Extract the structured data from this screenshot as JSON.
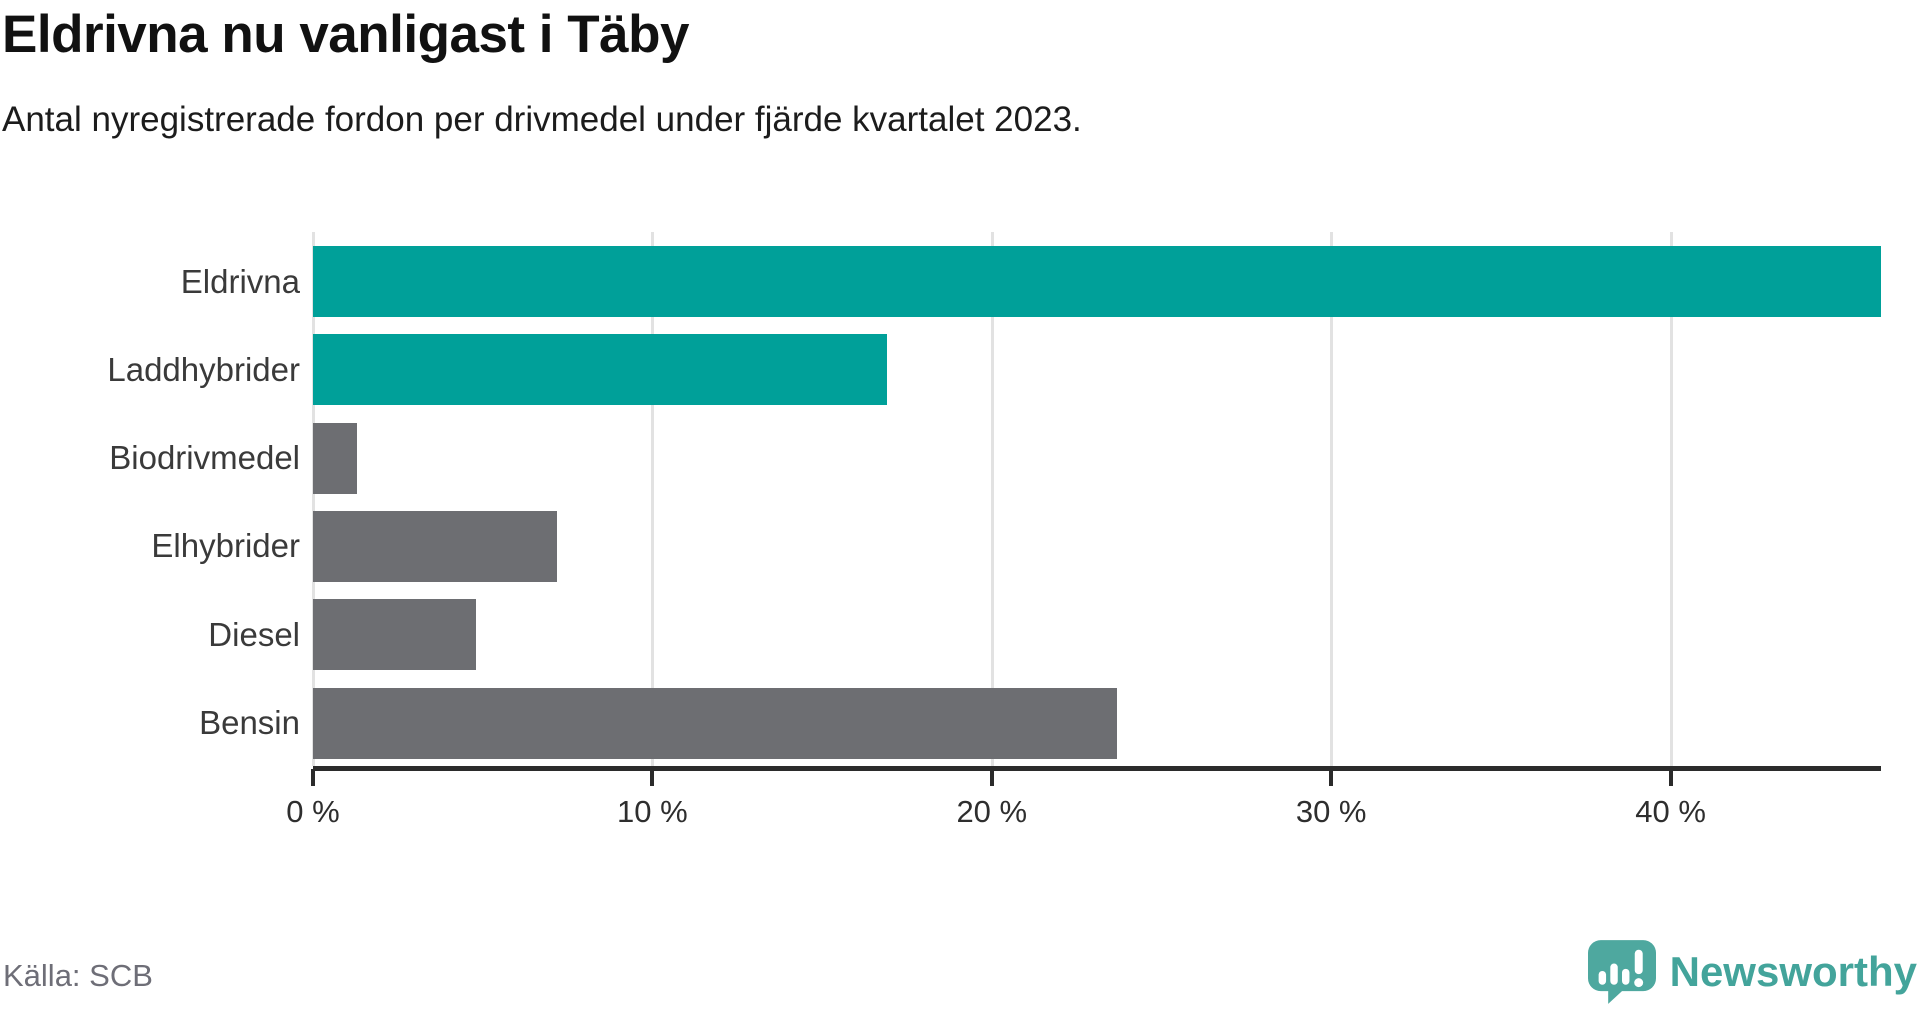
{
  "header": {
    "title": "Eldrivna nu vanligast i Täby",
    "subtitle": "Antal nyregistrerade fordon per drivmedel under fjärde kvartalet 2023."
  },
  "chart_data": {
    "type": "bar",
    "orientation": "horizontal",
    "title": "Eldrivna nu vanligast i Täby",
    "subtitle": "Antal nyregistrerade fordon per drivmedel under fjärde kvartalet 2023.",
    "categories": [
      "Eldrivna",
      "Laddhybrider",
      "Biodrivmedel",
      "Elhybrider",
      "Diesel",
      "Bensin"
    ],
    "values": [
      46.2,
      16.9,
      1.3,
      7.2,
      4.8,
      23.7
    ],
    "unit": "%",
    "xlim": [
      0,
      46.2
    ],
    "x_ticks": [
      {
        "value": 0,
        "label": "0 %"
      },
      {
        "value": 10,
        "label": "10 %"
      },
      {
        "value": 20,
        "label": "20 %"
      },
      {
        "value": 30,
        "label": "30 %"
      },
      {
        "value": 40,
        "label": "40 %"
      }
    ],
    "bar_colors": [
      "#00a099",
      "#00a099",
      "#6d6e72",
      "#6d6e72",
      "#6d6e72",
      "#6d6e72"
    ],
    "highlight_color": "#00a099",
    "default_color": "#6d6e72",
    "grid": true,
    "gridline_color": "#e2e2e2",
    "axis_color": "#2b2b2b",
    "legend": "none"
  },
  "footer": {
    "source": "Källa: SCB",
    "brand": "Newsworthy",
    "brand_color": "#43a49b",
    "icon": "newsworthy-speech-bubble-barchart-icon"
  }
}
